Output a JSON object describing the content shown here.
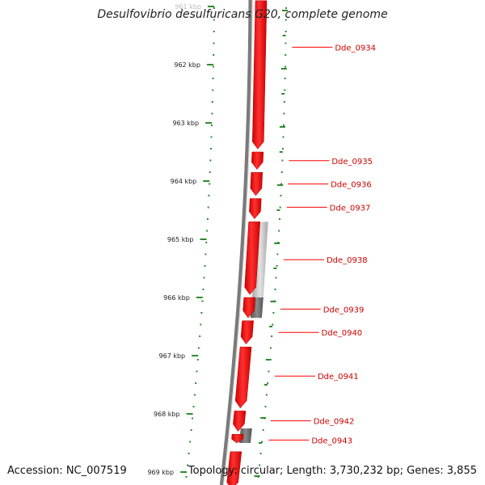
{
  "title": "Desulfovibrio desulfuricans G20, complete genome",
  "accession": "Accession: NC_007519",
  "topology": "Topology: circular; Length: 3,730,232 bp; Genes: 3,855",
  "colors": {
    "gene": "#ff0000",
    "gene_label": "#cc0000",
    "other_feature": "#bdbdbd",
    "other_feature_dark": "#6e6e6e",
    "backbone": "#7a7a7a",
    "tick": "#2e8b2e",
    "scale_text": "#222222"
  },
  "scale_labels": [
    {
      "text": "961 kbp",
      "kbp": 961,
      "faded": true
    },
    {
      "text": "962 kbp",
      "kbp": 962
    },
    {
      "text": "963 kbp",
      "kbp": 963
    },
    {
      "text": "964 kbp",
      "kbp": 964
    },
    {
      "text": "965 kbp",
      "kbp": 965
    },
    {
      "text": "966 kbp",
      "kbp": 966
    },
    {
      "text": "967 kbp",
      "kbp": 967
    },
    {
      "text": "968 kbp",
      "kbp": 968
    },
    {
      "text": "969 kbp",
      "kbp": 969
    }
  ],
  "genes": [
    {
      "label": "Dde_0934",
      "start": 960.9,
      "end": 963.45
    },
    {
      "label": "Dde_0935",
      "start": 963.5,
      "end": 963.8
    },
    {
      "label": "Dde_0936",
      "start": 963.85,
      "end": 964.25
    },
    {
      "label": "Dde_0937",
      "start": 964.3,
      "end": 964.65
    },
    {
      "label": "Dde_0938",
      "start": 964.7,
      "end": 965.95
    },
    {
      "label": "Dde_0939",
      "start": 966.0,
      "end": 966.35
    },
    {
      "label": "Dde_0940",
      "start": 966.4,
      "end": 966.8
    },
    {
      "label": "Dde_0941",
      "start": 966.85,
      "end": 967.9
    },
    {
      "label": "Dde_0942",
      "start": 967.95,
      "end": 968.3
    },
    {
      "label": "Dde_0943",
      "start": 968.35,
      "end": 968.5
    },
    {
      "label": "",
      "start": 968.65,
      "end": 969.3
    }
  ],
  "other_features": [
    {
      "start": 964.7,
      "end": 966.0,
      "tone": "light"
    },
    {
      "start": 966.0,
      "end": 966.35,
      "tone": "dark"
    },
    {
      "start": 968.25,
      "end": 968.5,
      "tone": "dark"
    }
  ],
  "label_kbp": {
    "Dde_0934": 961.7,
    "Dde_0935": 963.65,
    "Dde_0936": 964.05,
    "Dde_0937": 964.45,
    "Dde_0938": 965.35,
    "Dde_0939": 966.2,
    "Dde_0940": 966.6,
    "Dde_0941": 967.35,
    "Dde_0942": 968.12,
    "Dde_0943": 968.45
  }
}
